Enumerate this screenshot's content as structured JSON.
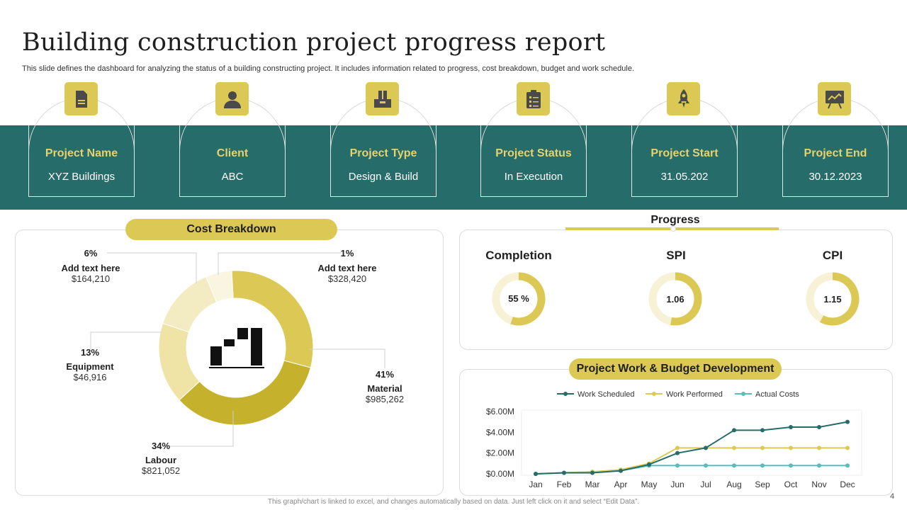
{
  "header": {
    "title": "Building construction project progress report",
    "subtitle": "This slide defines the dashboard for analyzing the status of a building constructing project. It includes information related to progress, cost breakdown, budget and work schedule."
  },
  "cards": [
    {
      "label": "Project Name",
      "value": "XYZ  Buildings",
      "icon": "document-icon"
    },
    {
      "label": "Client",
      "value": "ABC",
      "icon": "person-icon"
    },
    {
      "label": "Project Type",
      "value": "Design & Build",
      "icon": "file-drawer-icon"
    },
    {
      "label": "Project Status",
      "value": "In Execution",
      "icon": "clipboard-icon"
    },
    {
      "label": "Project Start",
      "value": "31.05.202",
      "icon": "rocket-icon"
    },
    {
      "label": "Project End",
      "value": "30.12.2023",
      "icon": "presentation-board-icon"
    }
  ],
  "cost": {
    "title": "Cost Breakdown",
    "items": [
      {
        "pct": "6%",
        "name": "Add text here",
        "amount": "$164,210",
        "color": "#f3ecc3"
      },
      {
        "pct": "1%",
        "name": "Add text here",
        "amount": "$328,420",
        "color": "#f9f5e0"
      },
      {
        "pct": "41%",
        "name": "Material",
        "amount": "$985,262",
        "color": "#dcc955"
      },
      {
        "pct": "34%",
        "name": "Labour",
        "amount": "$821,052",
        "color": "#c6b12c"
      },
      {
        "pct": "13%",
        "name": "Equipment",
        "amount": "$46,916",
        "color": "#efe4a5"
      }
    ]
  },
  "progress": {
    "title": "Progress",
    "gauges": [
      {
        "label": "Completion",
        "value": "55 %",
        "fraction": 0.55
      },
      {
        "label": "SPI",
        "value": "1.06",
        "fraction": 0.53
      },
      {
        "label": "CPI",
        "value": "1.15",
        "fraction": 0.58
      }
    ]
  },
  "work": {
    "title": "Project Work & Budget Development"
  },
  "colors": {
    "teal": "#266c6a",
    "gold": "#dcc955",
    "olive": "#c6b12c",
    "cyan": "#5bbcb8",
    "cream": "#f7f2d6"
  },
  "chart_data": {
    "type": "line",
    "categories": [
      "Jan",
      "Feb",
      "Mar",
      "Apr",
      "May",
      "Jun",
      "Jul",
      "Aug",
      "Sep",
      "Oct",
      "Nov",
      "Dec"
    ],
    "ylim": [
      0,
      6
    ],
    "yticks": [
      "$0.00M",
      "$2.00M",
      "$4.00M",
      "$6.00M"
    ],
    "legend": "top",
    "grid": false,
    "series": [
      {
        "name": "Work Scheduled",
        "color": "#266c6a",
        "values": [
          0.0,
          0.1,
          0.1,
          0.3,
          0.9,
          2.0,
          2.5,
          4.2,
          4.2,
          4.5,
          4.5,
          5.0
        ]
      },
      {
        "name": "Work Performed",
        "color": "#dcc955",
        "values": [
          0.0,
          0.1,
          0.2,
          0.4,
          1.0,
          2.5,
          2.5,
          2.5,
          2.5,
          2.5,
          2.5,
          2.5
        ]
      },
      {
        "name": "Actual Costs",
        "color": "#5bbcb8",
        "values": [
          0.0,
          0.1,
          0.2,
          0.3,
          0.8,
          0.8,
          0.8,
          0.8,
          0.8,
          0.8,
          0.8,
          0.8
        ]
      }
    ]
  },
  "footer": {
    "note": "This graph/chart is linked to excel, and changes automatically based on data. Just left click on it and select “Edit Data”.",
    "page": "4"
  }
}
